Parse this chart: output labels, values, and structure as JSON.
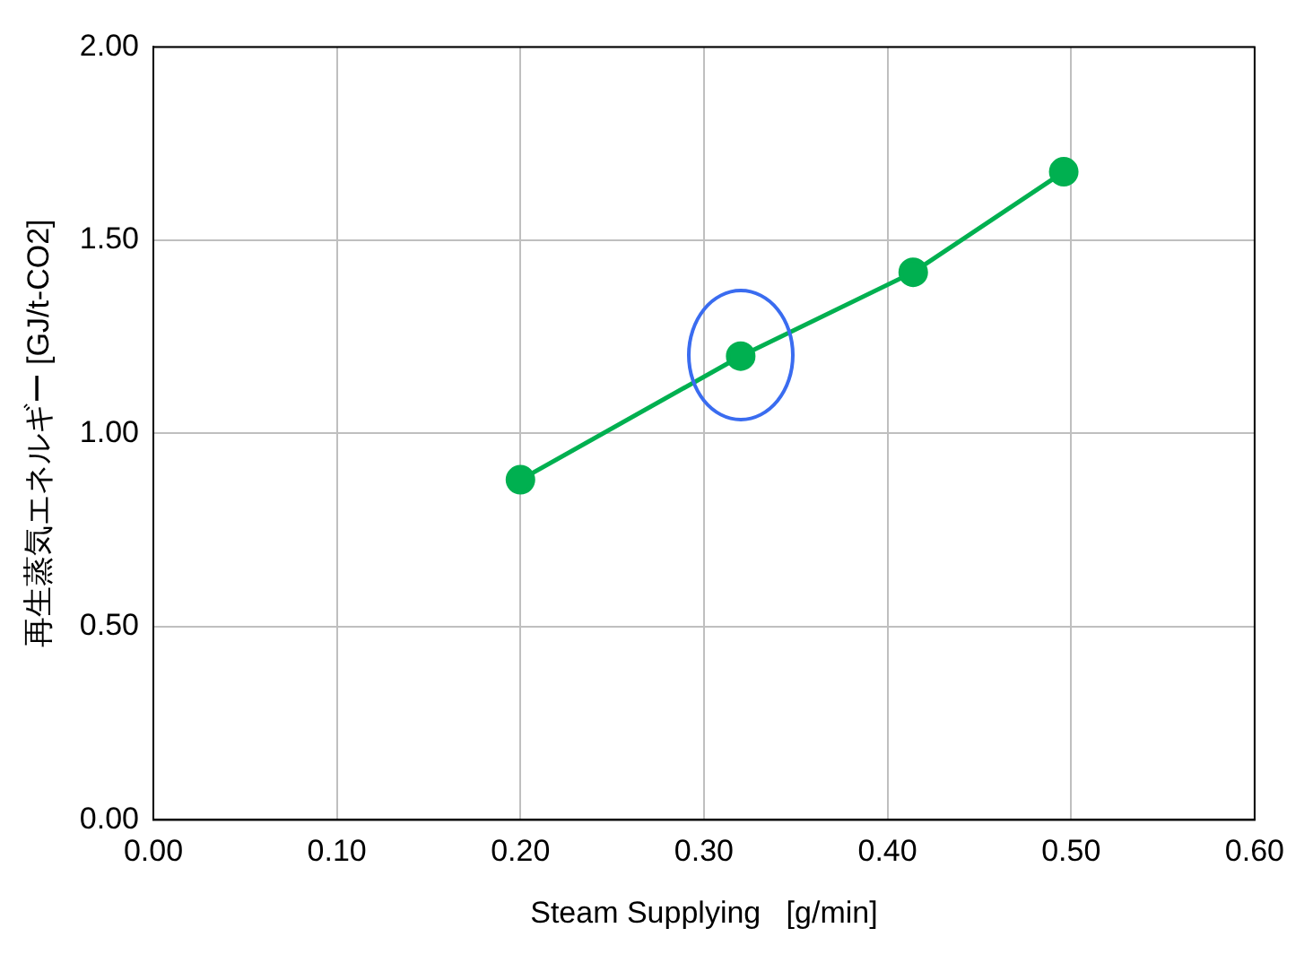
{
  "chart_data": {
    "type": "line",
    "xlabel": "Steam Supplying   [g/min]",
    "ylabel": "再生蒸気エネルギー [GJ/t-CO2]",
    "x": [
      0.2,
      0.32,
      0.414,
      0.496
    ],
    "series": [
      {
        "color": "#00b050",
        "values": [
          0.88,
          1.2,
          1.417,
          1.677
        ]
      }
    ],
    "xlim": [
      0,
      0.6
    ],
    "ylim": [
      0,
      2
    ],
    "xticks": [
      {
        "value": 0,
        "label": "0.00"
      },
      {
        "value": 0.1,
        "label": "0.10"
      },
      {
        "value": 0.2,
        "label": "0.20"
      },
      {
        "value": 0.3,
        "label": "0.30"
      },
      {
        "value": 0.4,
        "label": "0.40"
      },
      {
        "value": 0.5,
        "label": "0.50"
      },
      {
        "value": 0.6,
        "label": "0.60"
      }
    ],
    "yticks": [
      {
        "value": 0,
        "label": "0.00"
      },
      {
        "value": 0.5,
        "label": "0.50"
      },
      {
        "value": 1,
        "label": "1.00"
      },
      {
        "value": 1.5,
        "label": "1.50"
      },
      {
        "value": 2,
        "label": "2.00"
      }
    ],
    "grid": true,
    "legend": false,
    "marker": "circle",
    "line_style": "solid"
  }
}
